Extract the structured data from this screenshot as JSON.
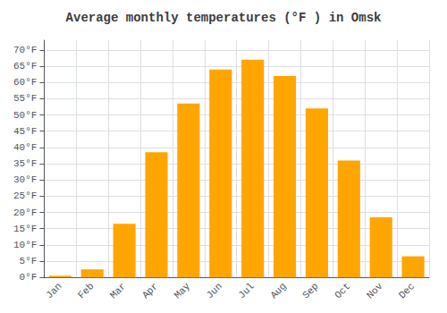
{
  "chart_data": {
    "type": "bar",
    "title": "Average monthly temperatures (°F ) in Omsk",
    "categories": [
      "Jan",
      "Feb",
      "Mar",
      "Apr",
      "May",
      "Jun",
      "Jul",
      "Aug",
      "Sep",
      "Oct",
      "Nov",
      "Dec"
    ],
    "values": [
      0.5,
      2.5,
      16.5,
      38.5,
      53.5,
      64.0,
      67.0,
      62.0,
      52.0,
      36.0,
      18.5,
      6.5
    ],
    "color": "#FFA500",
    "ylim": [
      0,
      73
    ],
    "yticks": [
      {
        "value": 0,
        "label": "0°F"
      },
      {
        "value": 5,
        "label": "5°F"
      },
      {
        "value": 10,
        "label": "10°F"
      },
      {
        "value": 15,
        "label": "15°F"
      },
      {
        "value": 20,
        "label": "20°F"
      },
      {
        "value": 25,
        "label": "25°F"
      },
      {
        "value": 30,
        "label": "30°F"
      },
      {
        "value": 35,
        "label": "35°F"
      },
      {
        "value": 40,
        "label": "40°F"
      },
      {
        "value": 45,
        "label": "45°F"
      },
      {
        "value": 50,
        "label": "50°F"
      },
      {
        "value": 55,
        "label": "55°F"
      },
      {
        "value": 60,
        "label": "60°F"
      },
      {
        "value": 65,
        "label": "65°F"
      },
      {
        "value": 70,
        "label": "70°F"
      }
    ],
    "grid": true
  }
}
